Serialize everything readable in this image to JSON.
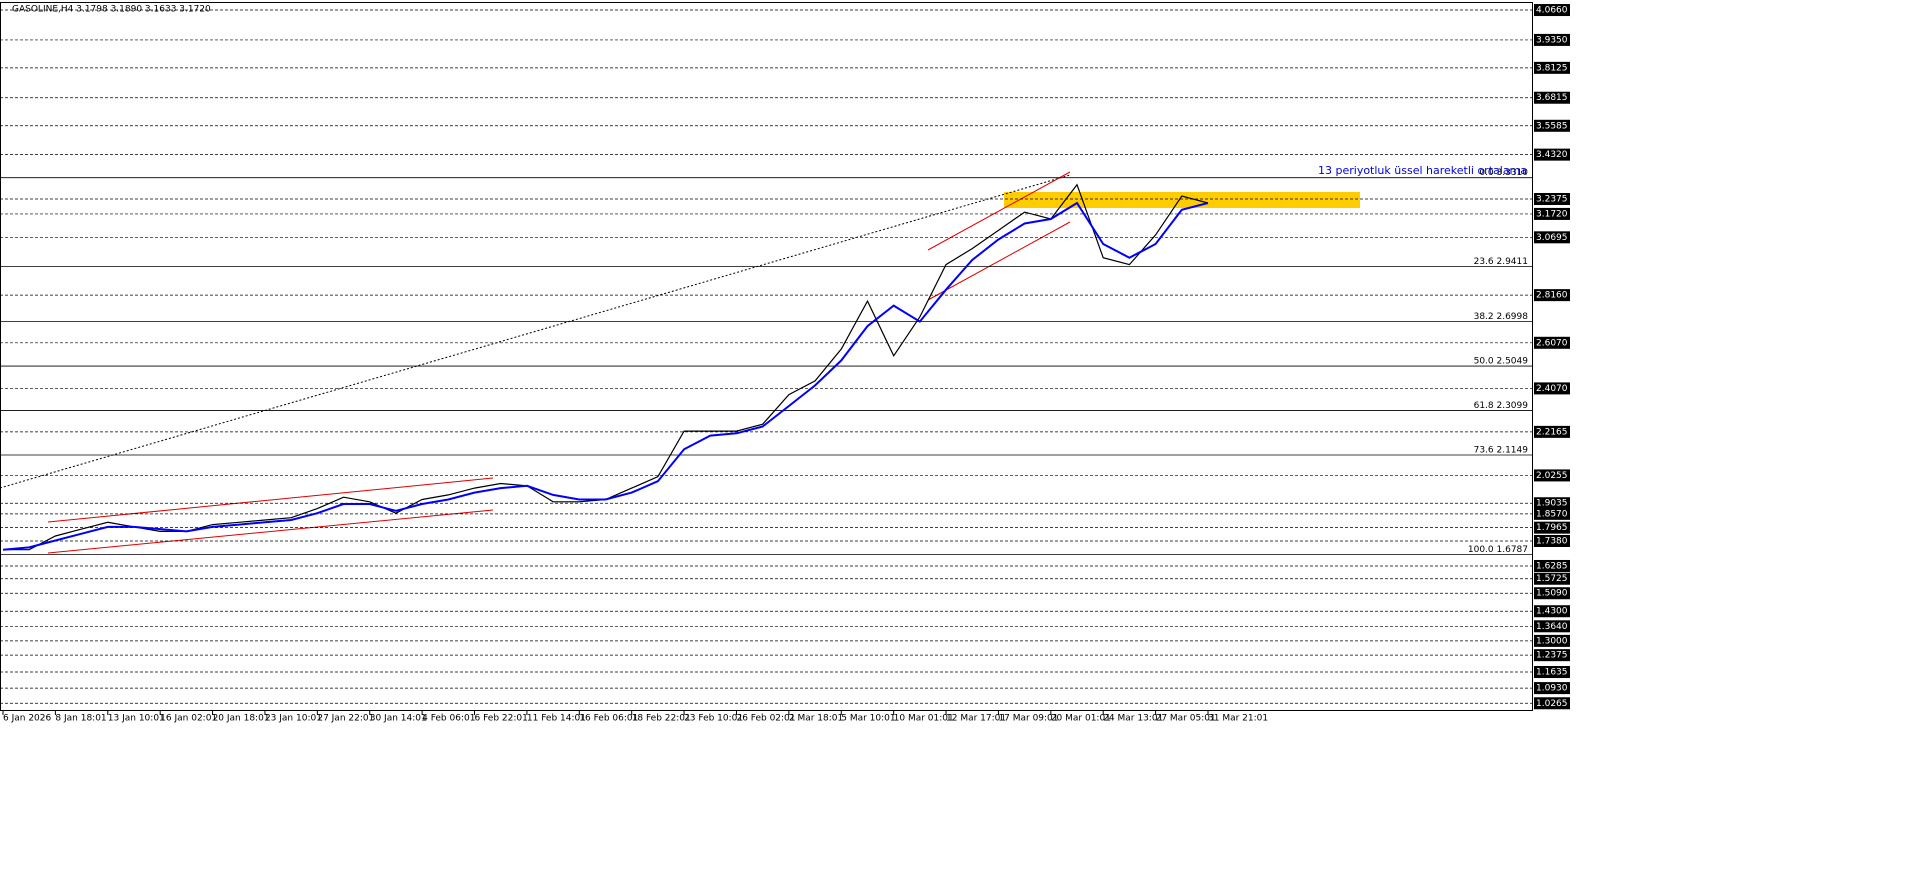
{
  "chart_data": {
    "type": "line",
    "title": "GASOLINE,H4  3.1798 3.1890 3.1633 3.1720",
    "annotation": "13 periyotluk üssel hareketli ortalama",
    "categories": [
      "6 Jan 2026",
      null,
      "8 Jan 18:01",
      null,
      "13 Jan 10:01",
      null,
      "16 Jan 02:01",
      null,
      "20 Jan 18:01",
      null,
      "23 Jan 10:01",
      null,
      "27 Jan 22:01",
      null,
      "30 Jan 14:01",
      null,
      "4 Feb 06:01",
      null,
      "6 Feb 22:01",
      null,
      "11 Feb 14:01",
      null,
      "16 Feb 06:01",
      null,
      "18 Feb 22:01",
      null,
      "23 Feb 10:01",
      null,
      "26 Feb 02:01",
      null,
      "2 Mar 18:01",
      null,
      "5 Mar 10:01",
      null,
      "10 Mar 01:01",
      null,
      "12 Mar 17:01",
      null,
      "17 Mar 09:01",
      null,
      "20 Mar 01:01",
      null,
      "24 Mar 13:01",
      null,
      "27 Mar 05:01",
      null,
      "31 Mar 21:01"
    ],
    "series": [
      {
        "color": "#000000",
        "values": [
          1.7,
          1.7,
          1.76,
          1.79,
          1.82,
          1.8,
          1.78,
          1.78,
          1.81,
          1.82,
          1.83,
          1.84,
          1.88,
          1.93,
          1.91,
          1.86,
          1.92,
          1.94,
          1.97,
          1.99,
          1.98,
          1.91,
          1.91,
          1.92,
          1.97,
          2.02,
          2.22,
          2.22,
          2.22,
          2.25,
          2.38,
          2.44,
          2.58,
          2.79,
          2.55,
          2.72,
          2.95,
          3.02,
          3.1,
          3.18,
          3.15,
          3.3,
          2.98,
          2.95,
          3.08,
          3.25,
          3.22
        ]
      },
      {
        "color": "#0000ff",
        "values": [
          1.7,
          1.71,
          1.74,
          1.77,
          1.8,
          1.8,
          1.79,
          1.78,
          1.8,
          1.81,
          1.82,
          1.83,
          1.86,
          1.9,
          1.9,
          1.87,
          1.9,
          1.92,
          1.95,
          1.97,
          1.98,
          1.94,
          1.92,
          1.92,
          1.95,
          2.0,
          2.14,
          2.2,
          2.21,
          2.24,
          2.33,
          2.42,
          2.53,
          2.68,
          2.77,
          2.7,
          2.84,
          2.97,
          3.06,
          3.13,
          3.15,
          3.22,
          3.04,
          2.98,
          3.04,
          3.19,
          3.22
        ]
      }
    ],
    "ylim": [
      0.94,
      4.11
    ],
    "yticks": [
      {
        "value": 4.066,
        "label": "4.0660"
      },
      {
        "value": 3.935,
        "label": "3.9350"
      },
      {
        "value": 3.8125,
        "label": "3.8125"
      },
      {
        "value": 3.6815,
        "label": "3.6815"
      },
      {
        "value": 3.5585,
        "label": "3.5585"
      },
      {
        "value": 3.432,
        "label": "3.4320"
      },
      {
        "value": 3.2375,
        "label": "3.2375"
      },
      {
        "value": 3.172,
        "label": "3.1720"
      },
      {
        "value": 3.0695,
        "label": "3.0695"
      },
      {
        "value": 2.816,
        "label": "2.8160"
      },
      {
        "value": 2.607,
        "label": "2.6070"
      },
      {
        "value": 2.407,
        "label": "2.4070"
      },
      {
        "value": 2.2165,
        "label": "2.2165"
      },
      {
        "value": 2.0255,
        "label": "2.0255"
      },
      {
        "value": 1.9035,
        "label": "1.9035"
      },
      {
        "value": 1.857,
        "label": "1.8570"
      },
      {
        "value": 1.7965,
        "label": "1.7965"
      },
      {
        "value": 1.738,
        "label": "1.7380"
      },
      {
        "value": 1.6285,
        "label": "1.6285"
      },
      {
        "value": 1.5725,
        "label": "1.5725"
      },
      {
        "value": 1.509,
        "label": "1.5090"
      },
      {
        "value": 1.43,
        "label": "1.4300"
      },
      {
        "value": 1.364,
        "label": "1.3640"
      },
      {
        "value": 1.3,
        "label": "1.3000"
      },
      {
        "value": 1.2375,
        "label": "1.2375"
      },
      {
        "value": 1.1635,
        "label": "1.1635"
      },
      {
        "value": 1.093,
        "label": "1.0930"
      },
      {
        "value": 1.0265,
        "label": "1.0265"
      }
    ],
    "fib_levels": [
      {
        "value": 3.331,
        "label": "0.0 3.3310"
      },
      {
        "value": 2.9411,
        "label": "23.6 2.9411"
      },
      {
        "value": 2.6998,
        "label": "38.2 2.6998"
      },
      {
        "value": 2.5049,
        "label": "50.0 2.5049"
      },
      {
        "value": 2.3099,
        "label": "61.8 2.3099"
      },
      {
        "value": 2.1149,
        "label": "73.6 2.1149"
      },
      {
        "value": 1.6787,
        "label": "100.0 1.6787"
      }
    ],
    "grid": true
  }
}
